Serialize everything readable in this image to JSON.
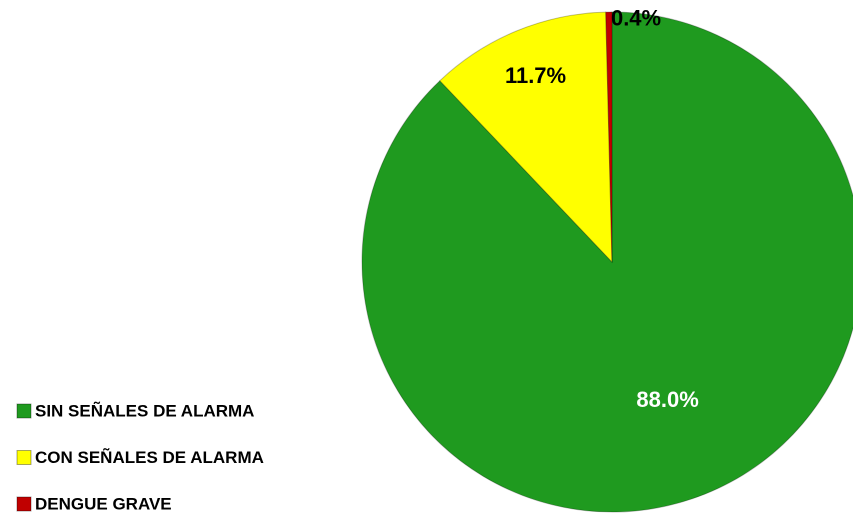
{
  "chart_data": {
    "type": "pie",
    "categories": [
      "SIN SEÑALES DE ALARMA",
      "CON SEÑALES DE ALARMA",
      "DENGUE GRAVE"
    ],
    "values": [
      88.0,
      11.7,
      0.4
    ],
    "value_labels": [
      "88.0%",
      "11.7%",
      "0.4%"
    ],
    "colors": [
      "#1f9a1f",
      "#ffff00",
      "#c00000"
    ]
  }
}
